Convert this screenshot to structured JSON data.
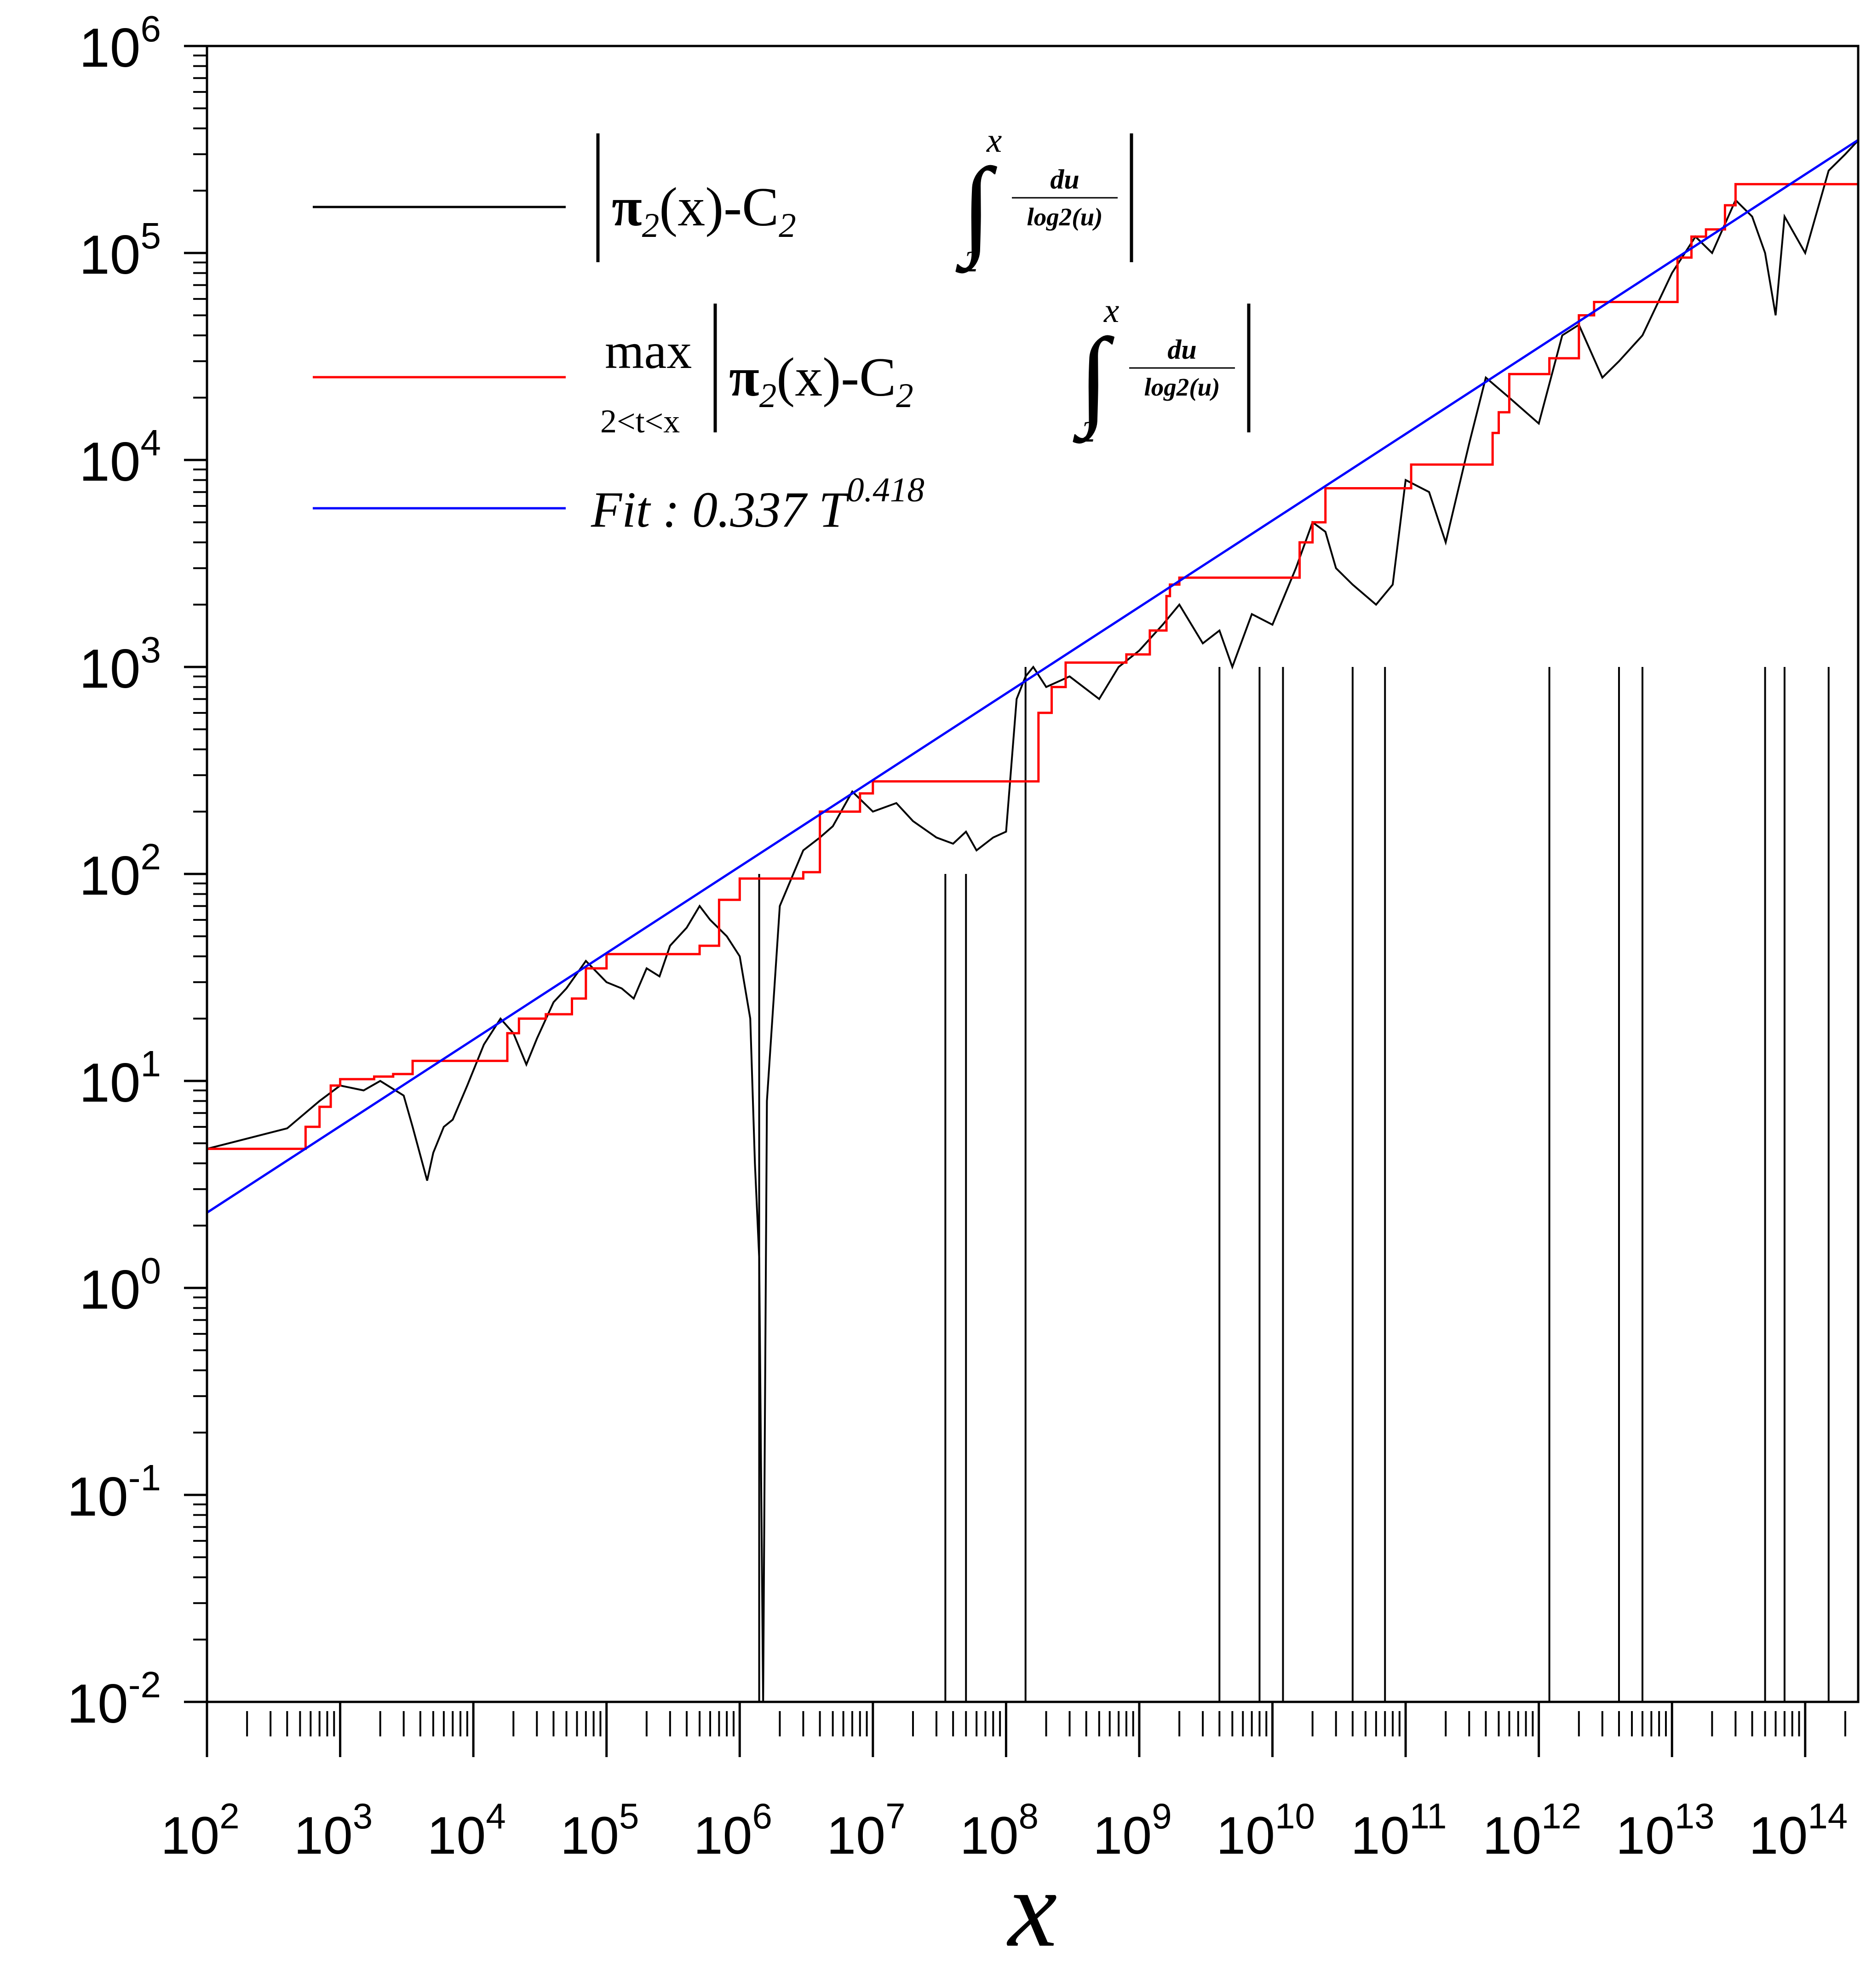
{
  "chart_data": {
    "type": "line",
    "title": "",
    "xlabel": "x",
    "ylabel": "",
    "xscale": "log",
    "yscale": "log",
    "xlim": [
      100,
      250000000000000
    ],
    "ylim": [
      0.01,
      1000000
    ],
    "grid": false,
    "legend_position": "top-left",
    "x_tick_labels": [
      {
        "base": "10",
        "exp": "2"
      },
      {
        "base": "10",
        "exp": "3"
      },
      {
        "base": "10",
        "exp": "4"
      },
      {
        "base": "10",
        "exp": "5"
      },
      {
        "base": "10",
        "exp": "6"
      },
      {
        "base": "10",
        "exp": "7"
      },
      {
        "base": "10",
        "exp": "8"
      },
      {
        "base": "10",
        "exp": "9"
      },
      {
        "base": "10",
        "exp": "10"
      },
      {
        "base": "10",
        "exp": "11"
      },
      {
        "base": "10",
        "exp": "12"
      },
      {
        "base": "10",
        "exp": "13"
      },
      {
        "base": "10",
        "exp": "14"
      }
    ],
    "y_tick_labels": [
      {
        "base": "10",
        "exp": "-2"
      },
      {
        "base": "10",
        "exp": "-1"
      },
      {
        "base": "10",
        "exp": "0"
      },
      {
        "base": "10",
        "exp": "1"
      },
      {
        "base": "10",
        "exp": "2"
      },
      {
        "base": "10",
        "exp": "3"
      },
      {
        "base": "10",
        "exp": "4"
      },
      {
        "base": "10",
        "exp": "5"
      },
      {
        "base": "10",
        "exp": "6"
      }
    ],
    "series": [
      {
        "name": "|π2(x)-C2∫2x du/log2(u)|",
        "color": "#000000",
        "x": [
          100,
          400,
          700,
          1000,
          1500,
          2000,
          3000,
          3500,
          4500,
          5000,
          6000,
          7000,
          9000,
          12000,
          16000,
          20000,
          25000,
          30000,
          40000,
          50000,
          70000,
          100000,
          130000,
          160000,
          200000,
          250000,
          300000,
          400000,
          500000,
          600000,
          800000,
          1000000,
          1200000,
          1300000,
          1400000,
          1500000,
          1600000,
          2000000,
          3000000,
          4000000,
          5000000,
          7000000,
          10000000,
          15000000,
          20000000,
          30000000,
          40000000,
          50000000,
          60000000,
          80000000,
          100000000,
          120000000,
          140000000,
          160000000,
          200000000,
          300000000,
          500000000,
          700000000,
          1000000000,
          1500000000,
          2000000000,
          3000000000,
          4000000000,
          5000000000,
          7000000000,
          10000000000,
          15000000000,
          20000000000,
          25000000000,
          30000000000,
          40000000000,
          60000000000,
          80000000000,
          100000000000,
          150000000000,
          200000000000,
          300000000000,
          400000000000,
          600000000000,
          1000000000000,
          1500000000000,
          2000000000000,
          3000000000000,
          4000000000000,
          6000000000000,
          10000000000000,
          15000000000000,
          20000000000000,
          30000000000000,
          40000000000000,
          50000000000000,
          60000000000000,
          70000000000000,
          100000000000000,
          150000000000000,
          200000000000000,
          250000000000000
        ],
        "y": [
          4.7,
          5.9,
          8.0,
          9.5,
          9.0,
          10.0,
          8.5,
          6.0,
          3.3,
          4.5,
          6.0,
          6.5,
          9.5,
          15,
          20,
          17,
          12,
          16,
          24,
          28,
          38,
          30,
          28,
          25,
          35,
          32,
          45,
          55,
          70,
          60,
          50,
          40,
          20,
          4.0,
          1.4,
          0.01,
          8,
          70,
          130,
          150,
          170,
          250,
          200,
          220,
          180,
          150,
          140,
          160,
          130,
          150,
          160,
          700,
          900,
          1000,
          800,
          900,
          700,
          1000,
          1200,
          1600,
          2000,
          1300,
          1500,
          1000,
          1800,
          1600,
          3000,
          5000,
          4500,
          3000,
          2500,
          2000,
          2500,
          8000,
          7000,
          4000,
          12000,
          25000,
          20000,
          15000,
          40000,
          45000,
          25000,
          30000,
          40000,
          80000,
          120000,
          100000,
          180000,
          150000,
          100000,
          50000,
          150000,
          100000,
          250000,
          300000,
          350000
        ],
        "dips_to_floor_near_x": [
          1400000,
          35000000,
          50000000,
          140000000,
          4000000000,
          8000000000,
          12000000000,
          40000000000,
          70000000000,
          1200000000000,
          4000000000000,
          6000000000000,
          50000000000000,
          70000000000000,
          150000000000000
        ]
      },
      {
        "name": "max2<t<x|π2(x)-C2∫2x du/log2(u)|",
        "color": "#ff0000",
        "x": [
          100,
          400,
          550,
          700,
          850,
          1000,
          1800,
          2500,
          3500,
          14000,
          18000,
          22000,
          35000,
          55000,
          70000,
          100000,
          350000,
          500000,
          700000,
          1000000,
          3000000,
          4000000,
          8000000,
          10000000,
          160000000,
          175000000,
          220000000,
          280000000,
          600000000,
          800000000,
          1200000000,
          1600000000,
          1700000000,
          2000000000,
          12000000000,
          16000000000,
          20000000000,
          25000000000,
          100000000000,
          110000000000,
          450000000000,
          500000000000,
          600000000000,
          1000000000000,
          1200000000000,
          1900000000000,
          2000000000000,
          2600000000000,
          9000000000000,
          11000000000000,
          14000000000000,
          18000000000000,
          25000000000000,
          30000000000000,
          190000000000000,
          250000000000000
        ],
        "y": [
          4.7,
          4.7,
          6.0,
          7.5,
          9.5,
          10.2,
          10.5,
          10.8,
          12.5,
          12.5,
          17,
          20,
          21,
          25,
          35,
          41,
          41,
          45,
          75,
          95,
          102,
          200,
          245,
          280,
          280,
          600,
          800,
          1050,
          1050,
          1150,
          1500,
          2200,
          2500,
          2700,
          2700,
          4000,
          5000,
          7300,
          7300,
          9500,
          13500,
          17000,
          26000,
          26000,
          31000,
          31000,
          50000,
          58000,
          58000,
          95000,
          120000,
          130000,
          170000,
          215000,
          215000,
          360000
        ]
      },
      {
        "name": "Fit :  0.337 T0.418",
        "color": "#0000ff",
        "coef": 0.337,
        "exponent": 0.418,
        "x": [
          100,
          250000000000000
        ]
      }
    ]
  },
  "legend": {
    "entries": [
      {
        "color": "#000000",
        "max_text": "",
        "max_sub": "",
        "pi": "π",
        "pi_sub": "2",
        "open": "(x)-C",
        "c_sub": "2",
        "int_low": "2",
        "int_high": "x",
        "frac_num": "du",
        "frac_den": "log2(u)"
      },
      {
        "color": "#ff0000",
        "max_text": "max",
        "max_sub": "2<t<x",
        "pi": "π",
        "pi_sub": "2",
        "open": "(x)-C",
        "c_sub": "2",
        "int_low": "2",
        "int_high": "x",
        "frac_num": "du",
        "frac_den": "log2(u)"
      },
      {
        "color": "#0000ff",
        "fit_label": "Fit :  0.337 T",
        "fit_exp": "0.418"
      }
    ]
  }
}
